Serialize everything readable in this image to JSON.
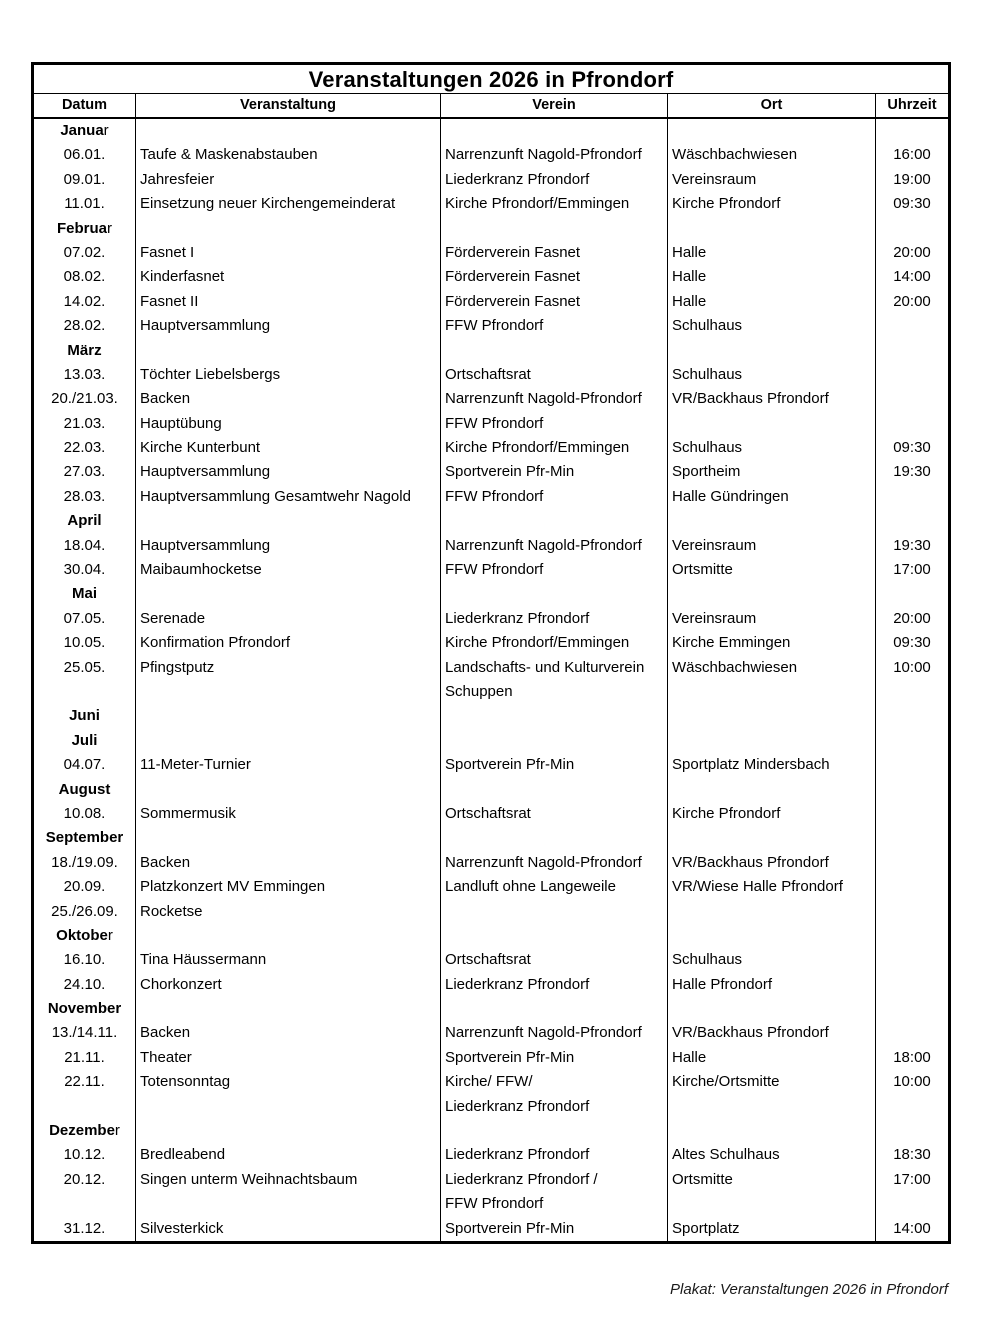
{
  "title": "Veranstaltungen 2026 in Pfrondorf",
  "columns": [
    "Datum",
    "Veranstaltung",
    "Verein",
    "Ort",
    "Uhrzeit"
  ],
  "footer": "Plakat: Veranstaltungen 2026 in Pfrondorf",
  "rows": [
    {
      "type": "month",
      "bold": "Janua",
      "tail": "r"
    },
    {
      "type": "event",
      "datum": "06.01.",
      "veranstaltung": "Taufe & Maskenabstauben",
      "verein": "Narrenzunft Nagold-Pfrondorf",
      "ort": "Wäschbachwiesen",
      "uhrzeit": "16:00"
    },
    {
      "type": "event",
      "datum": "09.01.",
      "veranstaltung": "Jahresfeier",
      "verein": "Liederkranz Pfrondorf",
      "ort": "Vereinsraum",
      "uhrzeit": "19:00"
    },
    {
      "type": "event",
      "datum": "11.01.",
      "veranstaltung": "Einsetzung neuer Kirchengemeinderat",
      "verein": "Kirche Pfrondorf/Emmingen",
      "ort": "Kirche Pfrondorf",
      "uhrzeit": "09:30"
    },
    {
      "type": "month",
      "bold": "Februa",
      "tail": "r"
    },
    {
      "type": "event",
      "datum": "07.02.",
      "veranstaltung": "Fasnet I",
      "verein": "Förderverein Fasnet",
      "ort": "Halle",
      "uhrzeit": "20:00"
    },
    {
      "type": "event",
      "datum": "08.02.",
      "veranstaltung": "Kinderfasnet",
      "verein": "Förderverein Fasnet",
      "ort": "Halle",
      "uhrzeit": "14:00"
    },
    {
      "type": "event",
      "datum": "14.02.",
      "veranstaltung": "Fasnet II",
      "verein": "Förderverein Fasnet",
      "ort": "Halle",
      "uhrzeit": "20:00"
    },
    {
      "type": "event",
      "datum": "28.02.",
      "veranstaltung": "Hauptversammlung",
      "verein": "FFW Pfrondorf",
      "ort": "Schulhaus",
      "uhrzeit": ""
    },
    {
      "type": "month",
      "bold": "März",
      "tail": ""
    },
    {
      "type": "event",
      "datum": "13.03.",
      "veranstaltung": "Töchter Liebelsbergs",
      "verein": "Ortschaftsrat",
      "ort": "Schulhaus",
      "uhrzeit": ""
    },
    {
      "type": "event",
      "datum": "20./21.03.",
      "veranstaltung": "Backen",
      "verein": "Narrenzunft Nagold-Pfrondorf",
      "ort": "VR/Backhaus Pfrondorf",
      "uhrzeit": ""
    },
    {
      "type": "event",
      "datum": "21.03.",
      "veranstaltung": "Hauptübung",
      "verein": "FFW Pfrondorf",
      "ort": "",
      "uhrzeit": ""
    },
    {
      "type": "event",
      "datum": "22.03.",
      "veranstaltung": "Kirche Kunterbunt",
      "verein": "Kirche Pfrondorf/Emmingen",
      "ort": "Schulhaus",
      "uhrzeit": "09:30"
    },
    {
      "type": "event",
      "datum": "27.03.",
      "veranstaltung": "Hauptversammlung",
      "verein": "Sportverein Pfr-Min",
      "ort": "Sportheim",
      "uhrzeit": "19:30"
    },
    {
      "type": "event",
      "datum": "28.03.",
      "veranstaltung": "Hauptversammlung Gesamtwehr Nagold",
      "verein": "FFW Pfrondorf",
      "ort": "Halle Gündringen",
      "uhrzeit": ""
    },
    {
      "type": "month",
      "bold": "April",
      "tail": ""
    },
    {
      "type": "event",
      "datum": "18.04.",
      "veranstaltung": "Hauptversammlung",
      "verein": "Narrenzunft Nagold-Pfrondorf",
      "ort": "Vereinsraum",
      "uhrzeit": "19:30"
    },
    {
      "type": "event",
      "datum": "30.04.",
      "veranstaltung": "Maibaumhocketse",
      "verein": "FFW Pfrondorf",
      "ort": "Ortsmitte",
      "uhrzeit": "17:00"
    },
    {
      "type": "month",
      "bold": "Mai",
      "tail": ""
    },
    {
      "type": "event",
      "datum": "07.05.",
      "veranstaltung": "Serenade",
      "verein": "Liederkranz Pfrondorf",
      "ort": "Vereinsraum",
      "uhrzeit": "20:00"
    },
    {
      "type": "event",
      "datum": "10.05.",
      "veranstaltung": "Konfirmation Pfrondorf",
      "verein": "Kirche Pfrondorf/Emmingen",
      "ort": "Kirche Emmingen",
      "uhrzeit": "09:30"
    },
    {
      "type": "event",
      "datum": "25.05.",
      "veranstaltung": "Pfingstputz",
      "verein": "Landschafts- und Kulturverein",
      "ort": "Wäschbachwiesen",
      "uhrzeit": "10:00"
    },
    {
      "type": "cont",
      "verein": "Schuppen"
    },
    {
      "type": "month",
      "bold": "Juni",
      "tail": ""
    },
    {
      "type": "month",
      "bold": "Juli",
      "tail": ""
    },
    {
      "type": "event",
      "datum": "04.07.",
      "veranstaltung": "11-Meter-Turnier",
      "verein": "Sportverein Pfr-Min",
      "ort": "Sportplatz Mindersbach",
      "uhrzeit": ""
    },
    {
      "type": "month",
      "bold": "August",
      "tail": ""
    },
    {
      "type": "event",
      "datum": "10.08.",
      "veranstaltung": "Sommermusik",
      "verein": "Ortschaftsrat",
      "ort": "Kirche Pfrondorf",
      "uhrzeit": ""
    },
    {
      "type": "month",
      "bold": "September",
      "tail": ""
    },
    {
      "type": "event",
      "datum": "18./19.09.",
      "veranstaltung": "Backen",
      "verein": "Narrenzunft Nagold-Pfrondorf",
      "ort": "VR/Backhaus Pfrondorf",
      "uhrzeit": ""
    },
    {
      "type": "event",
      "datum": "20.09.",
      "veranstaltung": "Platzkonzert MV Emmingen",
      "verein": "Landluft ohne Langeweile",
      "ort": "VR/Wiese Halle Pfrondorf",
      "uhrzeit": ""
    },
    {
      "type": "event",
      "datum": "25./26.09.",
      "veranstaltung": "Rocketse",
      "verein": "",
      "ort": "",
      "uhrzeit": ""
    },
    {
      "type": "month",
      "bold": "Oktobe",
      "tail": "r"
    },
    {
      "type": "event",
      "datum": "16.10.",
      "veranstaltung": "Tina Häussermann",
      "verein": "Ortschaftsrat",
      "ort": "Schulhaus",
      "uhrzeit": ""
    },
    {
      "type": "event",
      "datum": "24.10.",
      "veranstaltung": "Chorkonzert",
      "verein": "Liederkranz Pfrondorf",
      "ort": "Halle Pfrondorf",
      "uhrzeit": ""
    },
    {
      "type": "month",
      "bold": "November",
      "tail": ""
    },
    {
      "type": "event",
      "datum": "13./14.11.",
      "veranstaltung": "Backen",
      "verein": "Narrenzunft Nagold-Pfrondorf",
      "ort": "VR/Backhaus Pfrondorf",
      "uhrzeit": ""
    },
    {
      "type": "event",
      "datum": "21.11.",
      "veranstaltung": "Theater",
      "verein": "Sportverein Pfr-Min",
      "ort": "Halle",
      "uhrzeit": "18:00"
    },
    {
      "type": "event",
      "datum": "22.11.",
      "veranstaltung": "Totensonntag",
      "verein": "Kirche/ FFW/",
      "ort": "Kirche/Ortsmitte",
      "uhrzeit": "10:00"
    },
    {
      "type": "cont",
      "verein": "Liederkranz Pfrondorf"
    },
    {
      "type": "month",
      "bold": "Dezembe",
      "tail": "r"
    },
    {
      "type": "event",
      "datum": "10.12.",
      "veranstaltung": "Bredleabend",
      "verein": "Liederkranz Pfrondorf",
      "ort": "Altes Schulhaus",
      "uhrzeit": "18:30"
    },
    {
      "type": "event",
      "datum": "20.12.",
      "veranstaltung": "Singen unterm Weihnachtsbaum",
      "verein": "Liederkranz Pfrondorf /",
      "ort": "Ortsmitte",
      "uhrzeit": "17:00"
    },
    {
      "type": "cont",
      "verein": "FFW Pfrondorf"
    },
    {
      "type": "event",
      "datum": "31.12.",
      "veranstaltung": "Silvesterkick",
      "verein": "Sportverein Pfr-Min",
      "ort": "Sportplatz",
      "uhrzeit": "14:00"
    }
  ]
}
